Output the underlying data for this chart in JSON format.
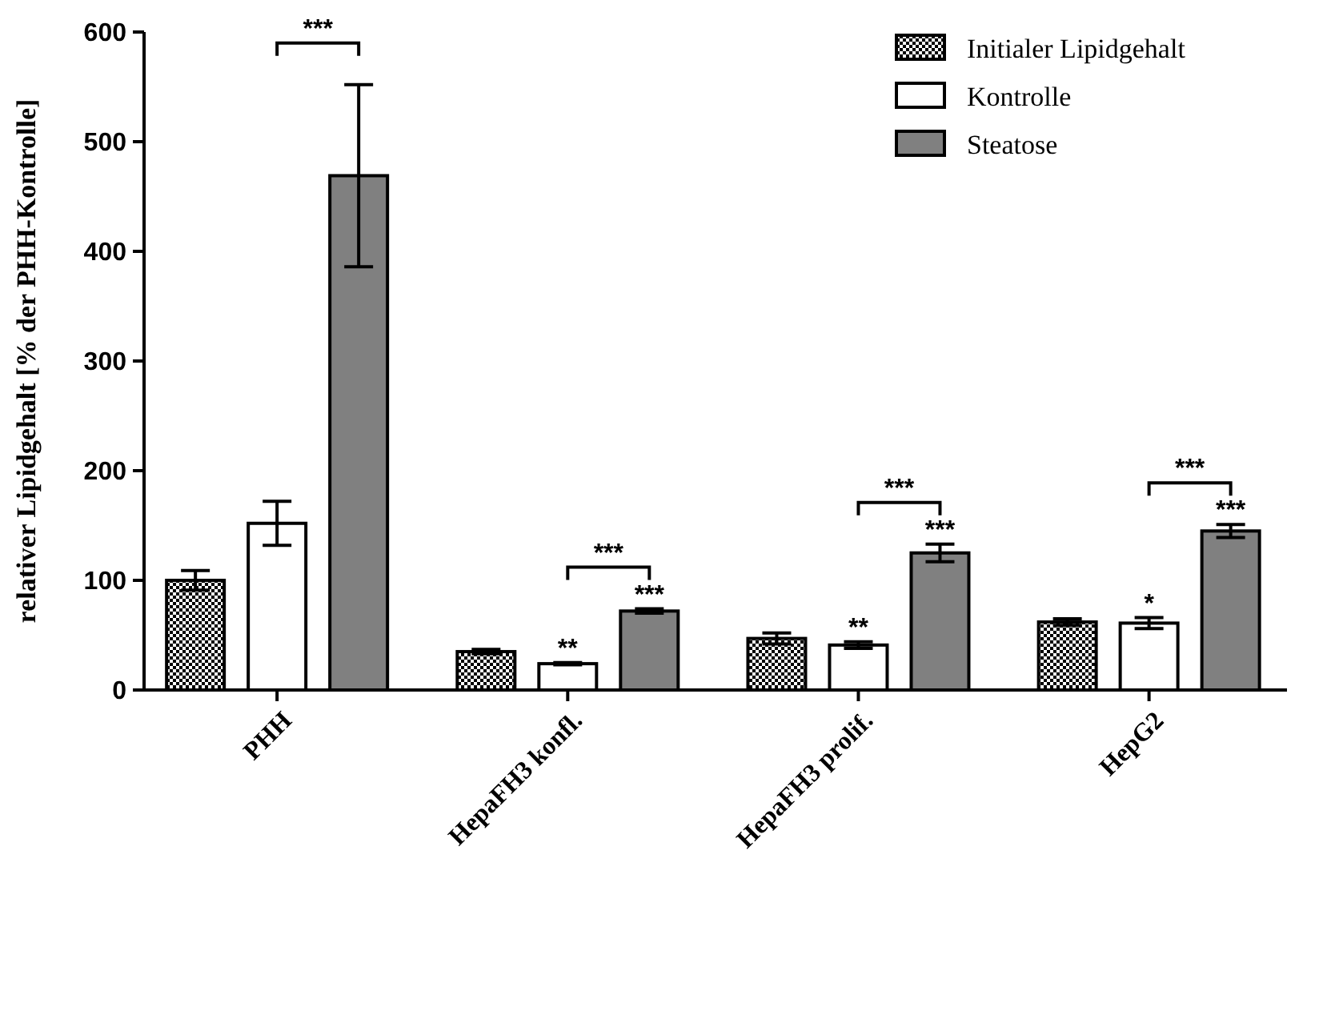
{
  "chart_data": {
    "type": "bar",
    "ylabel": "relativer Lipidgehalt [% der PHH-Kontrolle]",
    "categories": [
      "PHH",
      "HepaFH3 konfl.",
      "HepaFH3 prolif.",
      "HepG2"
    ],
    "series": [
      {
        "name": "Initialer Lipidgehalt",
        "color": "#000000",
        "values": [
          100,
          35,
          47,
          62
        ],
        "errors": [
          9,
          2,
          5,
          3
        ]
      },
      {
        "name": "Kontrolle",
        "color": "#ffffff",
        "values": [
          152,
          24,
          41,
          61
        ],
        "errors": [
          20,
          1,
          3,
          5
        ],
        "value_labels": [
          null,
          "**",
          "**",
          "*"
        ]
      },
      {
        "name": "Steatose",
        "color": "#808080",
        "values": [
          469,
          72,
          125,
          145
        ],
        "errors": [
          83,
          2,
          8,
          6
        ],
        "value_labels": [
          null,
          "***",
          "***",
          "***"
        ]
      }
    ],
    "ylim": [
      0,
      600
    ],
    "yticks": [
      0,
      100,
      200,
      300,
      400,
      500,
      600
    ],
    "legend": "top right",
    "annotations": [
      "***",
      "***",
      "***",
      "***"
    ]
  }
}
